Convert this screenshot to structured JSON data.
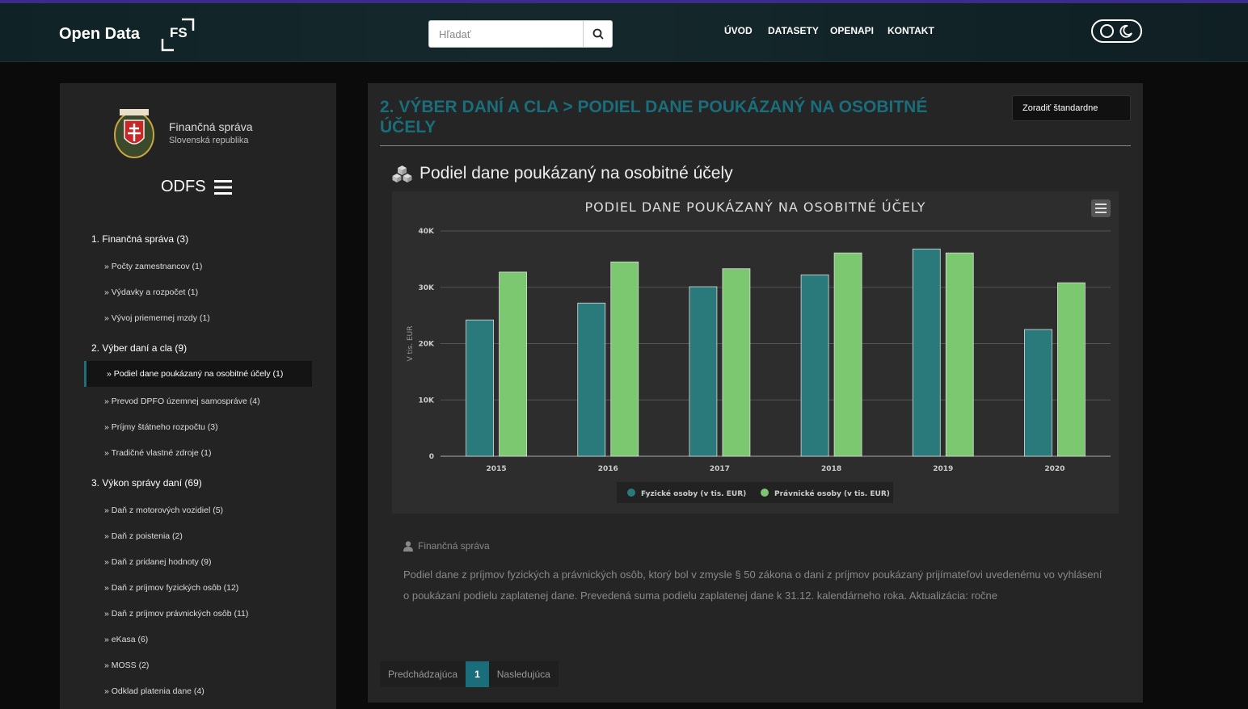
{
  "header": {
    "brand": "Open Data",
    "logo_text": "FS",
    "search_placeholder": "Hľadať",
    "nav": [
      "ÚVOD",
      "DATASETY",
      "OPENAPI",
      "KONTAKT"
    ]
  },
  "sidebar": {
    "org_name": "Finančná správa",
    "org_sub": "Slovenská republika",
    "menu_title": "ODFS",
    "categories": [
      {
        "label": "1. Finančná správa (3)",
        "items": [
          "» Počty zamestnancov (1)",
          "» Výdavky a rozpočet (1)",
          "» Vývoj priemernej mzdy (1)"
        ]
      },
      {
        "label": "2. Výber daní a cla (9)",
        "items": [
          "» Podiel dane poukázaný na osobitné účely (1)",
          "» Prevod DPFO územnej samospráve (4)",
          "» Príjmy štátneho rozpočtu (3)",
          "» Tradičné vlastné zdroje (1)"
        ]
      },
      {
        "label": "3. Výkon správy daní (69)",
        "items": [
          "» Daň z motorových vozidiel (5)",
          "» Daň z poistenia (2)",
          "» Daň z pridanej hodnoty (9)",
          "» Daň z príjmov fyzických osôb (12)",
          "» Daň z príjmov právnických osôb (11)",
          "» eKasa (6)",
          "» MOSS (2)",
          "» Odklad platenia dane (4)"
        ]
      }
    ]
  },
  "main": {
    "title": "2. VÝBER DANÍ A CLA > PODIEL DANE POUKÁZANÝ NA OSOBITNÉ ÚČELY",
    "sort_label": "Zoradiť štandardne",
    "dataset_title": "Podiel dane poukázaný na osobitné účely",
    "author": "Finančná správa",
    "description": "Podiel dane z príjmov fyzických a právnických osôb, ktorý bol v zmysle § 50 zákona o dani z príjmov poukázaný prijímateľovi uvedenému vo vyhlásení o poukázaní podielu zaplatenej dane. Prevedená suma podielu zaplatenej dane k 31.12. kalendárneho roka. Aktualizácia: ročne",
    "pager": {
      "prev": "Predchádzajúca",
      "current": "1",
      "next": "Nasledujúca"
    }
  },
  "colors": {
    "accent": "#1a6e7c",
    "series1": "#2a7a7c",
    "series2": "#7cc870"
  },
  "chart_data": {
    "type": "bar",
    "title": "PODIEL DANE POUKÁZANÝ NA OSOBITNÉ ÚČELY",
    "ylabel": "V tis. EUR",
    "ylim": [
      0,
      40000
    ],
    "yticks": [
      "0",
      "10K",
      "20K",
      "30K",
      "40K"
    ],
    "ytick_values": [
      0,
      10000,
      20000,
      30000,
      40000
    ],
    "categories": [
      "2015",
      "2016",
      "2017",
      "2018",
      "2019",
      "2020"
    ],
    "series": [
      {
        "name": "Fyzické osoby (v tis. EUR)",
        "values": [
          24200,
          27200,
          30100,
          32200,
          36800,
          22500
        ]
      },
      {
        "name": "Právnické osoby (v tis. EUR)",
        "values": [
          32700,
          34500,
          33300,
          36100,
          36100,
          30800
        ]
      }
    ],
    "legend": "bottom",
    "grid": true
  }
}
